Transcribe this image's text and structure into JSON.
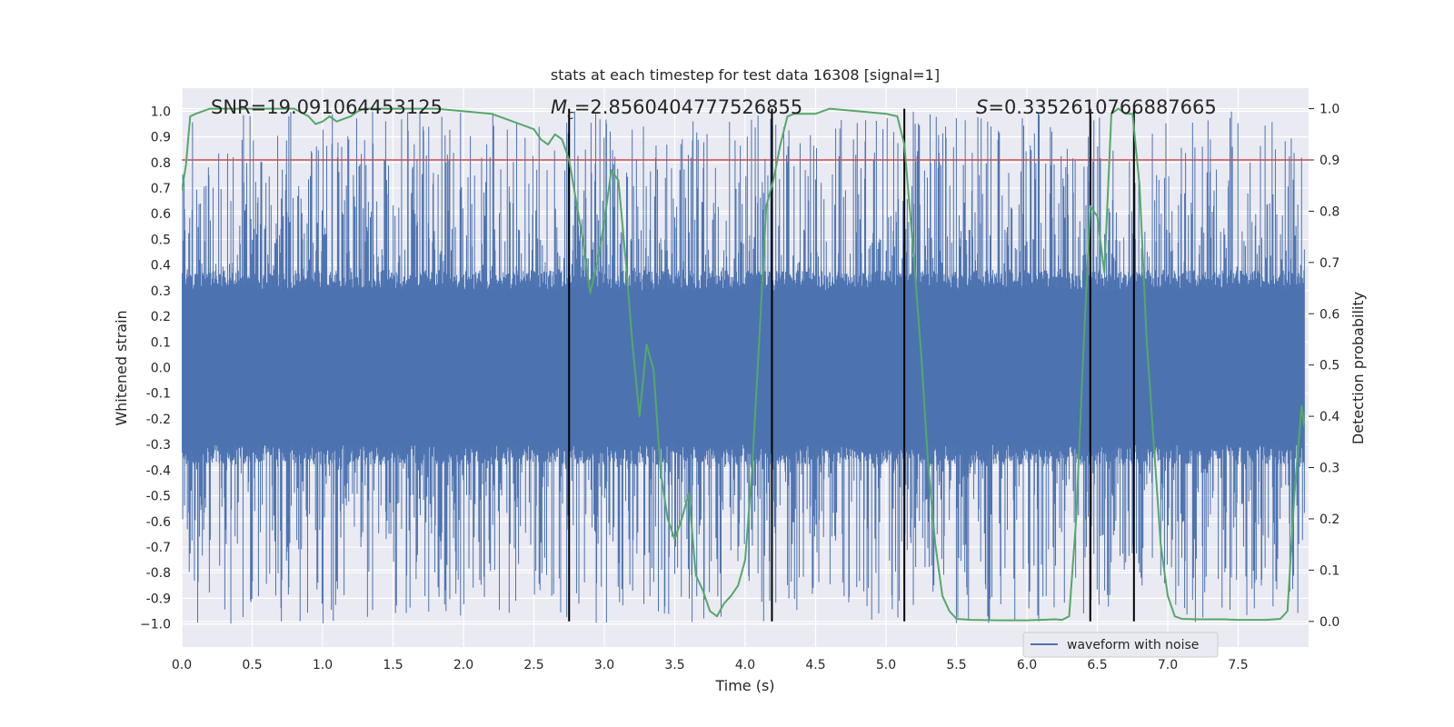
{
  "chart_data": {
    "type": "line",
    "title": "stats at each timestep for test data 16308 [signal=1]",
    "xlabel": "Time (s)",
    "ylabel_left": "Whitened strain",
    "ylabel_right": "Detection probability",
    "xlim": [
      0,
      8
    ],
    "ylim_left": [
      -1.09,
      1.09
    ],
    "ylim_right": [
      -0.05,
      1.04
    ],
    "x_ticks": [
      "0.0",
      "0.5",
      "1.0",
      "1.5",
      "2.0",
      "2.5",
      "3.0",
      "3.5",
      "4.0",
      "4.5",
      "5.0",
      "5.5",
      "6.0",
      "6.5",
      "7.0",
      "7.5"
    ],
    "y_left_ticks": [
      "1.0",
      "0.9",
      "0.8",
      "0.7",
      "0.6",
      "0.5",
      "0.4",
      "0.3",
      "0.2",
      "0.1",
      "0.0",
      "-0.1",
      "-0.2",
      "-0.3",
      "-0.4",
      "-0.5",
      "-0.6",
      "-0.7",
      "-0.8",
      "-0.9",
      "−1.0"
    ],
    "y_right_ticks": [
      "1.0",
      "0.9",
      "0.8",
      "0.7",
      "0.6",
      "0.5",
      "0.4",
      "0.3",
      "0.2",
      "0.1",
      "0.0"
    ],
    "annotations": {
      "snr": "SNR=19.091064453125",
      "mc_symbol": "M",
      "mc_sub": "c",
      "mc_value": "=2.8560404777526855",
      "s_symbol": "S",
      "s_value": "=0.3352610766887665"
    },
    "threshold": {
      "value": 0.9,
      "axis": "right",
      "color": "#c44e52"
    },
    "vertical_lines": [
      2.75,
      4.19,
      5.13,
      6.45,
      6.76
    ],
    "legend": {
      "label": "waveform with noise",
      "location": "lower right"
    },
    "series": [
      {
        "name": "waveform with noise",
        "axis": "left",
        "color": "#4c72b0",
        "kind": "noise",
        "core_amplitude": 0.3,
        "peak_max": 1.0,
        "t_range": [
          0,
          7.97
        ]
      },
      {
        "name": "detection probability",
        "axis": "right",
        "color": "#55a868",
        "x": [
          0.0,
          0.03,
          0.06,
          0.1,
          0.2,
          0.4,
          0.6,
          0.8,
          0.9,
          0.95,
          1.0,
          1.05,
          1.1,
          1.15,
          1.2,
          1.25,
          1.3,
          1.4,
          1.6,
          1.8,
          2.0,
          2.2,
          2.3,
          2.5,
          2.55,
          2.6,
          2.65,
          2.7,
          2.75,
          2.8,
          2.85,
          2.9,
          2.95,
          3.0,
          3.05,
          3.1,
          3.15,
          3.2,
          3.25,
          3.3,
          3.35,
          3.4,
          3.45,
          3.5,
          3.55,
          3.6,
          3.65,
          3.7,
          3.75,
          3.8,
          3.85,
          3.9,
          3.95,
          4.0,
          4.05,
          4.1,
          4.15,
          4.2,
          4.25,
          4.3,
          4.35,
          4.4,
          4.5,
          4.6,
          4.8,
          5.0,
          5.08,
          5.13,
          5.2,
          5.25,
          5.3,
          5.35,
          5.4,
          5.45,
          5.5,
          5.6,
          5.8,
          6.0,
          6.1,
          6.2,
          6.25,
          6.3,
          6.35,
          6.4,
          6.45,
          6.5,
          6.55,
          6.6,
          6.65,
          6.7,
          6.75,
          6.8,
          6.85,
          6.9,
          6.95,
          7.0,
          7.05,
          7.1,
          7.2,
          7.3,
          7.4,
          7.5,
          7.6,
          7.7,
          7.8,
          7.85,
          7.9,
          7.95,
          7.97
        ],
        "y": [
          0.84,
          0.89,
          0.985,
          0.99,
          1.0,
          1.0,
          1.0,
          1.0,
          0.985,
          0.97,
          0.975,
          0.985,
          0.975,
          0.98,
          0.985,
          0.995,
          1.0,
          1.0,
          1.0,
          1.0,
          0.995,
          0.99,
          0.98,
          0.96,
          0.94,
          0.93,
          0.95,
          0.94,
          0.9,
          0.82,
          0.74,
          0.64,
          0.7,
          0.78,
          0.88,
          0.86,
          0.71,
          0.54,
          0.4,
          0.54,
          0.49,
          0.29,
          0.2,
          0.16,
          0.2,
          0.25,
          0.09,
          0.06,
          0.02,
          0.01,
          0.035,
          0.05,
          0.07,
          0.12,
          0.3,
          0.55,
          0.81,
          0.86,
          0.93,
          0.985,
          0.99,
          0.99,
          0.99,
          1.0,
          0.995,
          0.99,
          0.985,
          0.93,
          0.7,
          0.52,
          0.3,
          0.15,
          0.05,
          0.02,
          0.005,
          0.003,
          0.002,
          0.002,
          0.003,
          0.004,
          0.003,
          0.01,
          0.2,
          0.52,
          0.81,
          0.79,
          0.68,
          0.99,
          1.0,
          0.99,
          0.99,
          0.85,
          0.55,
          0.35,
          0.15,
          0.05,
          0.01,
          0.005,
          0.004,
          0.004,
          0.004,
          0.003,
          0.003,
          0.003,
          0.005,
          0.02,
          0.25,
          0.42,
          0.38
        ]
      }
    ]
  }
}
